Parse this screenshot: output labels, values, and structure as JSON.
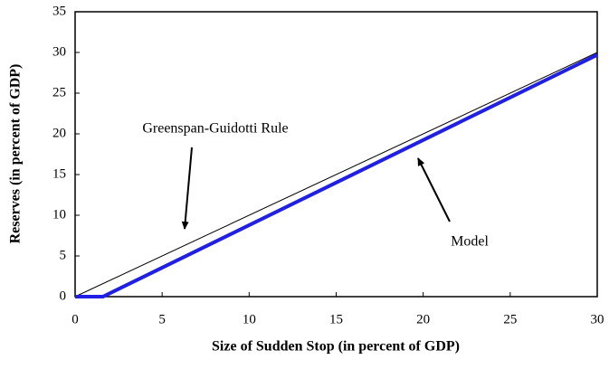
{
  "chart_data": {
    "type": "line",
    "x_label": "Size of Sudden Stop (in percent of GDP)",
    "y_label": "Reserves (in percent of GDP)",
    "xlim": [
      0,
      30
    ],
    "xticks": [
      0,
      5,
      10,
      15,
      20,
      25,
      30
    ],
    "ylim": [
      0,
      35
    ],
    "yticks": [
      0,
      5,
      10,
      15,
      20,
      25,
      30,
      35
    ],
    "series": [
      {
        "name": "Greenspan-Guidotti Rule",
        "color": "#000000",
        "width": 1,
        "x": [
          0,
          30
        ],
        "values": [
          0,
          30
        ]
      },
      {
        "name": "Model",
        "color": "#1f1fe6",
        "width": 4,
        "x": [
          0,
          1.6,
          30
        ],
        "values": [
          0,
          0,
          29.7
        ]
      }
    ],
    "annotations": [
      "Greenspan-Guidotti Rule",
      "Model"
    ]
  }
}
